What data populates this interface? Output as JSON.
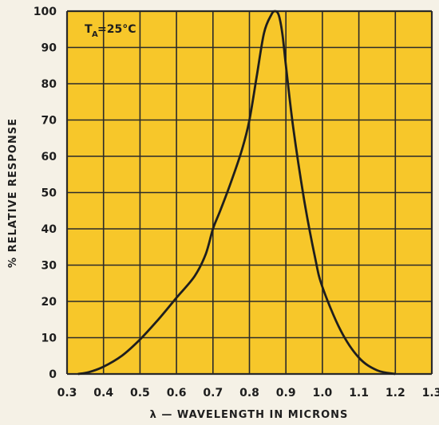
{
  "colors": {
    "plot_bg": "#f7c72a",
    "grid": "#2a2a2a",
    "curve": "#1e1e1e",
    "text": "#1e1e1e"
  },
  "chart_data": {
    "type": "line",
    "title": "",
    "xlabel": "λ — WAVELENGTH IN MICRONS",
    "ylabel": "% RELATIVE RESPONSE",
    "xlim": [
      0.3,
      1.3
    ],
    "ylim": [
      0,
      100
    ],
    "x_ticks": [
      "0.3",
      "0.4",
      "0.5",
      "0.6",
      "0.7",
      "0.8",
      "0.9",
      "1.0",
      "1.1",
      "1.2",
      "1.3"
    ],
    "y_ticks": [
      "0",
      "10",
      "20",
      "30",
      "40",
      "50",
      "60",
      "70",
      "80",
      "90",
      "100"
    ],
    "grid": true,
    "annotation": {
      "main": "T",
      "subscript": "A",
      "rest": "=25°C"
    },
    "series": [
      {
        "x": [
          0.33,
          0.36,
          0.4,
          0.45,
          0.5,
          0.55,
          0.6,
          0.65,
          0.68,
          0.7,
          0.72,
          0.75,
          0.78,
          0.8,
          0.82,
          0.84,
          0.86,
          0.87,
          0.88,
          0.89,
          0.9,
          0.92,
          0.95,
          0.98,
          1.0,
          1.05,
          1.1,
          1.15,
          1.2
        ],
        "y": [
          0,
          0.5,
          2,
          5,
          9.5,
          15,
          21,
          27,
          33,
          40,
          45,
          53,
          62,
          70,
          82,
          94,
          99,
          100,
          99,
          94,
          85,
          68,
          48,
          32,
          24,
          12,
          4.5,
          1,
          0
        ]
      }
    ]
  }
}
